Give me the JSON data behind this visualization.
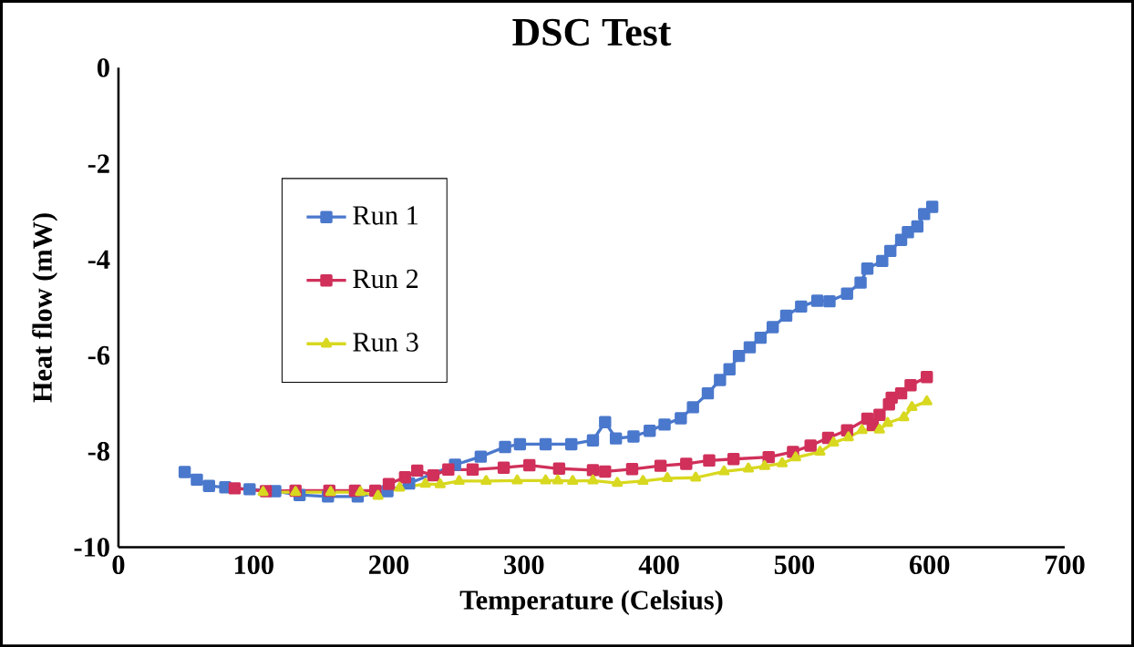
{
  "chart_data": {
    "type": "line",
    "title": "DSC Test",
    "xlabel": "Temperature (Celsius)",
    "ylabel": "Heat flow (mW)",
    "xlim": [
      0,
      700
    ],
    "xticks": [
      0,
      100,
      200,
      300,
      400,
      500,
      600,
      700
    ],
    "ylim": [
      -10,
      0
    ],
    "yticks": [
      -10,
      -8,
      -6,
      -4,
      -2,
      0
    ],
    "grid": false,
    "legend": "left",
    "marker": "square",
    "line_style": "solid",
    "series": [
      {
        "name": "Run 1",
        "color": "#4a78cc",
        "x": [
          49,
          58,
          67,
          79,
          97,
          116,
          134,
          155,
          177,
          199,
          215,
          249,
          268,
          286,
          297,
          316,
          335,
          351,
          360,
          368,
          381,
          393,
          404,
          416,
          425,
          436,
          445,
          452,
          459,
          467,
          475,
          484,
          494,
          505,
          517,
          526,
          539,
          549,
          554,
          565,
          571,
          579,
          584,
          591,
          596,
          602
        ],
        "values": [
          -8.43,
          -8.59,
          -8.72,
          -8.75,
          -8.79,
          -8.83,
          -8.91,
          -8.94,
          -8.94,
          -8.83,
          -8.67,
          -8.28,
          -8.11,
          -7.91,
          -7.85,
          -7.85,
          -7.85,
          -7.77,
          -7.39,
          -7.73,
          -7.69,
          -7.57,
          -7.44,
          -7.31,
          -7.08,
          -6.79,
          -6.51,
          -6.29,
          -6.01,
          -5.83,
          -5.63,
          -5.41,
          -5.17,
          -4.98,
          -4.86,
          -4.87,
          -4.71,
          -4.48,
          -4.19,
          -4.03,
          -3.82,
          -3.59,
          -3.43,
          -3.31,
          -3.05,
          -2.9
        ]
      },
      {
        "name": "Run 2",
        "color": "#d0305a",
        "x": [
          86,
          109,
          131,
          156,
          175,
          190,
          200,
          212,
          221,
          233,
          244,
          262,
          285,
          304,
          326,
          351,
          360,
          380,
          401,
          420,
          437,
          455,
          481,
          499,
          512,
          525,
          539,
          554,
          558,
          563,
          570,
          572,
          579,
          586,
          598
        ],
        "values": [
          -8.77,
          -8.83,
          -8.82,
          -8.82,
          -8.82,
          -8.82,
          -8.68,
          -8.54,
          -8.4,
          -8.5,
          -8.38,
          -8.38,
          -8.34,
          -8.29,
          -8.36,
          -8.39,
          -8.42,
          -8.37,
          -8.3,
          -8.26,
          -8.19,
          -8.16,
          -8.12,
          -8.01,
          -7.88,
          -7.72,
          -7.56,
          -7.32,
          -7.45,
          -7.24,
          -7.02,
          -6.88,
          -6.79,
          -6.62,
          -6.45
        ]
      },
      {
        "name": "Run 3",
        "color": "#d8d820",
        "marker": "triangle",
        "x": [
          107,
          131,
          157,
          179,
          192,
          208,
          227,
          238,
          252,
          272,
          295,
          316,
          325,
          336,
          351,
          369,
          388,
          406,
          427,
          448,
          466,
          478,
          491,
          501,
          519,
          529,
          540,
          550,
          563,
          569,
          581,
          587,
          598
        ],
        "values": [
          -8.85,
          -8.85,
          -8.85,
          -8.85,
          -8.93,
          -8.76,
          -8.68,
          -8.69,
          -8.62,
          -8.62,
          -8.61,
          -8.61,
          -8.61,
          -8.62,
          -8.61,
          -8.66,
          -8.62,
          -8.56,
          -8.55,
          -8.42,
          -8.36,
          -8.31,
          -8.25,
          -8.13,
          -8.01,
          -7.82,
          -7.71,
          -7.56,
          -7.55,
          -7.41,
          -7.29,
          -7.08,
          -6.96
        ]
      }
    ]
  }
}
